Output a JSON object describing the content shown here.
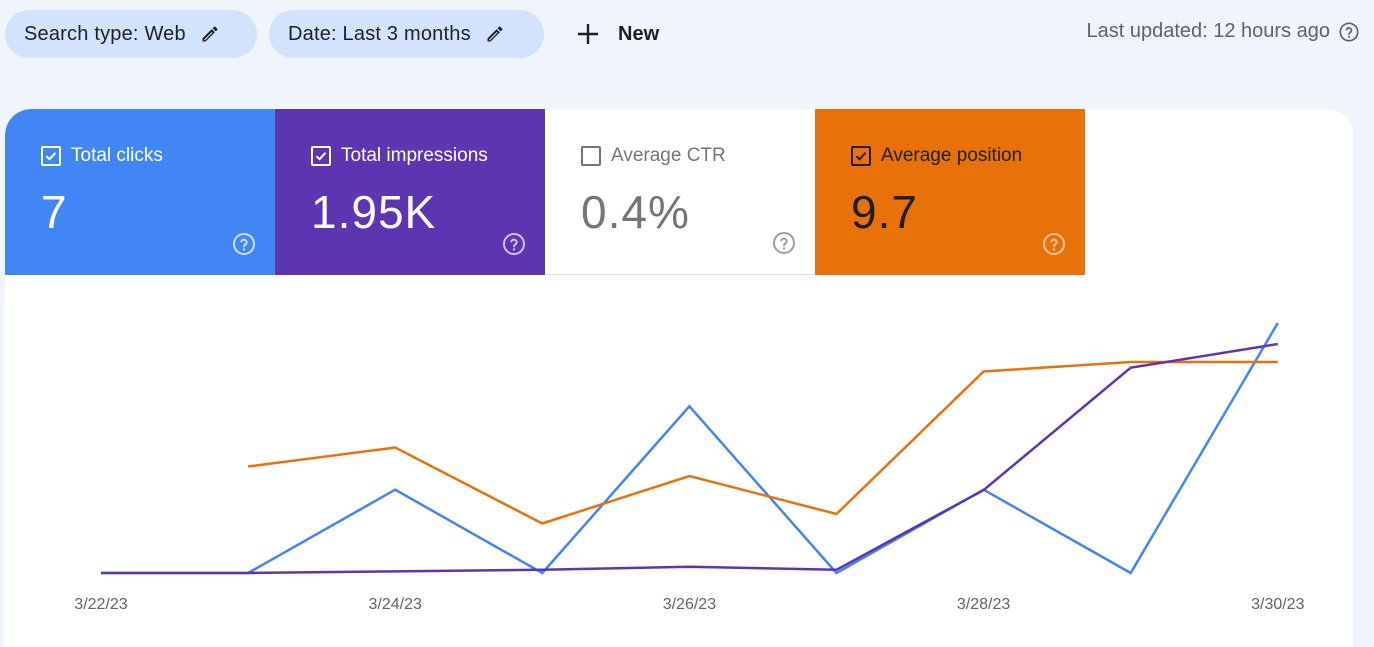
{
  "filters": {
    "search_type": "Search type: Web",
    "date": "Date: Last 3 months",
    "new_label": "New"
  },
  "last_updated": "Last updated: 12 hours ago",
  "metrics": {
    "total_clicks": {
      "label": "Total clicks",
      "value": "7",
      "checked": true,
      "color": "#4285f4"
    },
    "total_impressions": {
      "label": "Total impressions",
      "value": "1.95K",
      "checked": true,
      "color": "#5e35b1"
    },
    "average_ctr": {
      "label": "Average CTR",
      "value": "0.4%",
      "checked": false,
      "color": "#ffffff"
    },
    "average_position": {
      "label": "Average position",
      "value": "9.7",
      "checked": true,
      "color": "#e8710a"
    }
  },
  "chart_data": {
    "type": "line",
    "x": [
      "3/22/23",
      "3/23/23",
      "3/24/23",
      "3/25/23",
      "3/26/23",
      "3/27/23",
      "3/28/23",
      "3/29/23",
      "3/30/23"
    ],
    "x_tick_labels": [
      "3/22/23",
      "3/24/23",
      "3/26/23",
      "3/28/23",
      "3/30/23"
    ],
    "series": [
      {
        "metric": "total_clicks",
        "color": "#4285f4",
        "values": [
          0,
          0,
          1.7,
          0,
          3.4,
          0,
          1.7,
          0,
          5.1
        ]
      },
      {
        "metric": "average_position",
        "color": "#e8710a",
        "values": [
          null,
          2.9,
          3.1,
          2.3,
          2.8,
          2.4,
          3.9,
          4.0,
          4.0
        ]
      },
      {
        "metric": "total_impressions",
        "color": "#5e35b1",
        "values": [
          0,
          0,
          20,
          40,
          80,
          40,
          1050,
          2600,
          2900
        ]
      }
    ],
    "grid": false,
    "legend": "none"
  }
}
